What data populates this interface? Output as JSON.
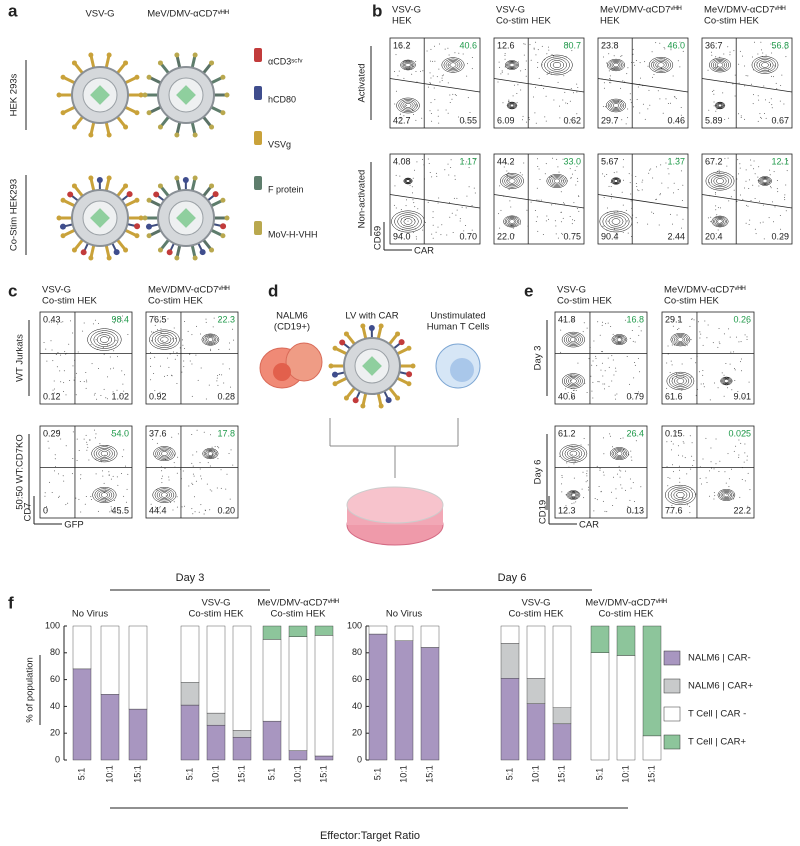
{
  "panel_labels": [
    "a",
    "b",
    "c",
    "d",
    "e",
    "f"
  ],
  "panel_a": {
    "columns": [
      "VSV-G",
      "MeV/DMV-αCD7ᵛᴴᴴ"
    ],
    "rows": [
      "HEK 293s",
      "Co-Stim HEK293"
    ],
    "legend": [
      "αCD3ˢᶜᶠᵛ",
      "hCD80",
      "VSVg",
      "F protein",
      "MoV-H-VHH"
    ]
  },
  "panel_b": {
    "columns": [
      [
        "VSV-G",
        "HEK"
      ],
      [
        "VSV-G",
        "Co-stim HEK"
      ],
      [
        "MeV/DMV-αCD7ᵛᴴᴴ",
        "HEK"
      ],
      [
        "MeV/DMV-αCD7ᵛᴴᴴ",
        "Co-stim HEK"
      ]
    ],
    "rows": [
      "Activated",
      "Non-activated"
    ],
    "y_axis": "CD69",
    "x_axis": "CAR",
    "quadrants": [
      [
        [
          "16.2",
          "40.6",
          "42.7",
          "0.55"
        ],
        [
          "12.6",
          "80.7",
          "6.09",
          "0.62"
        ],
        [
          "23.8",
          "46.0",
          "29.7",
          "0.46"
        ],
        [
          "36.7",
          "56.8",
          "5.89",
          "0.67"
        ]
      ],
      [
        [
          "4.08",
          "1.17",
          "94.0",
          "0.70"
        ],
        [
          "44.2",
          "33.0",
          "22.0",
          "0.75"
        ],
        [
          "5.67",
          "1.37",
          "90.4",
          "2.44"
        ],
        [
          "67.2",
          "12.1",
          "20.4",
          "0.29"
        ]
      ]
    ]
  },
  "panel_c": {
    "columns": [
      [
        "VSV-G",
        "Co-stim HEK"
      ],
      [
        "MeV/DMV-αCD7ᵛᴴᴴ",
        "Co-stim HEK"
      ]
    ],
    "rows": [
      "WT Jurkats",
      "50:50 WT:CD7KO"
    ],
    "y_axis": "CD7",
    "x_axis": "GFP",
    "quadrants": [
      [
        [
          "0.43",
          "98.4",
          "0.12",
          "1.02"
        ],
        [
          "76.5",
          "22.3",
          "0.92",
          "0.28"
        ]
      ],
      [
        [
          "0.29",
          "54.0",
          "0",
          "45.5"
        ],
        [
          "37.6",
          "17.8",
          "44.4",
          "0.20"
        ]
      ]
    ]
  },
  "panel_d": {
    "labels": [
      [
        "NALM6",
        "(CD19+)"
      ],
      [
        "LV with CAR"
      ],
      [
        "Unstimulated",
        "Human T Cells"
      ]
    ]
  },
  "panel_e": {
    "columns": [
      [
        "VSV-G",
        "Co-stim HEK"
      ],
      [
        "MeV/DMV-αCD7ᵛᴴᴴ",
        "Co-stim HEK"
      ]
    ],
    "rows": [
      "Day 3",
      "Day 6"
    ],
    "y_axis": "CD19",
    "x_axis": "CAR",
    "quadrants": [
      [
        [
          "41.8",
          "16.8",
          "40.6",
          "0.79"
        ],
        [
          "29.1",
          "0.26",
          "61.6",
          "9.01"
        ]
      ],
      [
        [
          "61.2",
          "26.4",
          "12.3",
          "0.13"
        ],
        [
          "0.15",
          "0.025",
          "77.6",
          "22.2"
        ]
      ]
    ]
  },
  "chart_data": [
    {
      "type": "bar",
      "stacked": true,
      "title": "Day 3",
      "ylabel": "% of population",
      "xlabel": "Effector:Target Ratio",
      "legend": "right",
      "groups": [
        [
          "No Virus"
        ],
        [
          "VSV-G",
          "Co-stim HEK"
        ],
        [
          "MeV/DMV-αCD7ᵛᴴᴴ",
          "Co-stim HEK"
        ]
      ],
      "categories": [
        "5:1",
        "10:1",
        "15:1",
        "5:1",
        "10:1",
        "15:1",
        "5:1",
        "10:1",
        "15:1"
      ],
      "ylim": [
        0,
        100
      ],
      "yticks": [
        0,
        20,
        40,
        60,
        80,
        100
      ],
      "series": [
        {
          "name": "NALM6 | CAR-",
          "color": "#a896c0",
          "values": [
            68,
            49,
            38,
            41,
            26,
            17,
            29,
            7,
            3
          ]
        },
        {
          "name": "NALM6 | CAR+",
          "color": "#c8cacb",
          "values": [
            0,
            0,
            0,
            17,
            9,
            5,
            0,
            0,
            0
          ]
        },
        {
          "name": "T Cell | CAR -",
          "color": "#ffffff",
          "values": [
            32,
            51,
            62,
            42,
            65,
            78,
            61,
            85,
            90
          ]
        },
        {
          "name": "T Cell | CAR+",
          "color": "#8dc59b",
          "values": [
            0,
            0,
            0,
            0,
            0,
            0,
            10,
            8,
            7
          ]
        }
      ]
    },
    {
      "type": "bar",
      "stacked": true,
      "title": "Day 6",
      "groups": [
        [
          "No Virus"
        ],
        [
          "VSV-G",
          "Co-stim HEK"
        ],
        [
          "MeV/DMV-αCD7ᵛᴴᴴ",
          "Co-stim HEK"
        ]
      ],
      "categories": [
        "5:1",
        "10:1",
        "15:1",
        "5:1",
        "10:1",
        "15:1",
        "5:1",
        "10:1",
        "15:1"
      ],
      "ylim": [
        0,
        100
      ],
      "yticks": [
        0,
        20,
        40,
        60,
        80,
        100
      ],
      "series": [
        {
          "color": "#a896c0",
          "values": [
            94,
            89,
            84,
            61,
            42,
            27,
            0,
            0,
            0
          ]
        },
        {
          "color": "#c8cacb",
          "values": [
            0,
            0,
            0,
            26,
            19,
            12,
            0,
            0,
            0
          ]
        },
        {
          "color": "#ffffff",
          "values": [
            6,
            11,
            16,
            13,
            39,
            61,
            80,
            78,
            18
          ]
        },
        {
          "color": "#8dc59b",
          "values": [
            0,
            0,
            0,
            0,
            0,
            0,
            20,
            22,
            82
          ]
        }
      ]
    }
  ]
}
